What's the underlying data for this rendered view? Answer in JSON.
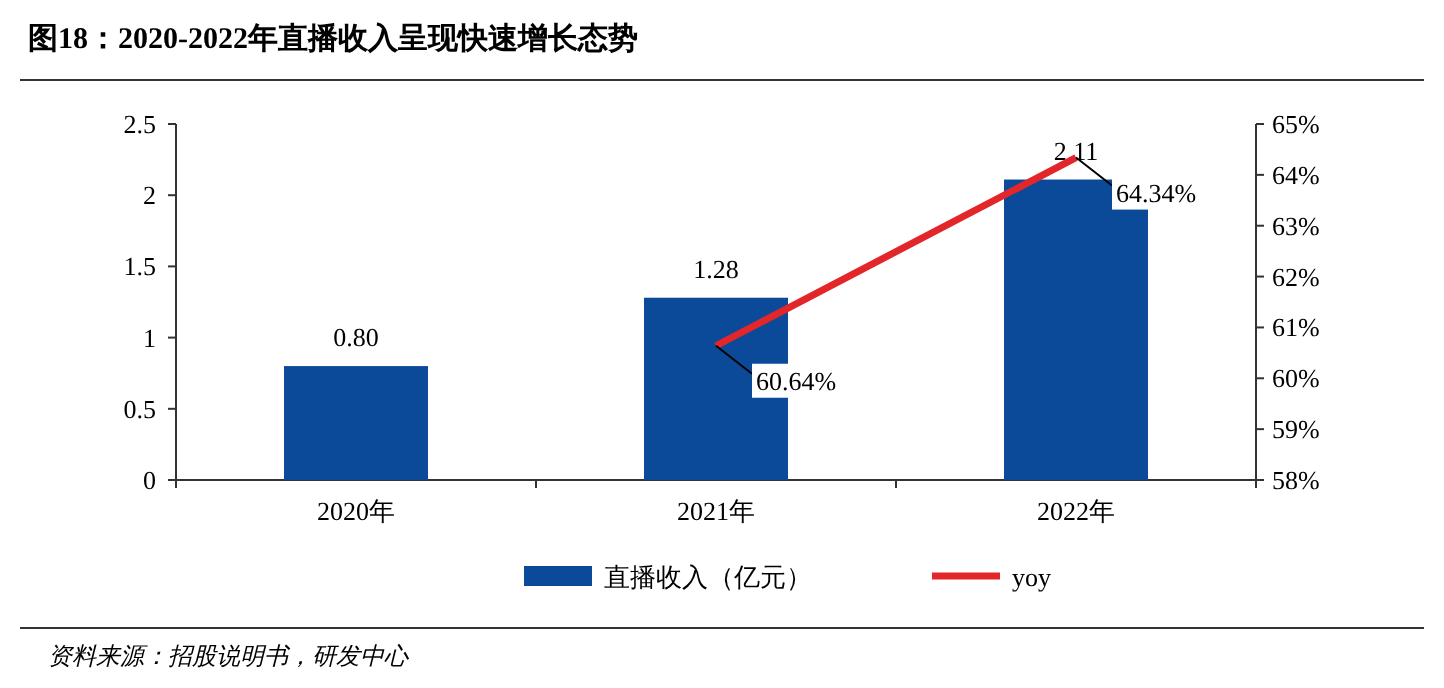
{
  "chart_data": {
    "type": "bar",
    "title": "图18：2020-2022年直播收入呈现快速增长态势",
    "categories": [
      "2020年",
      "2021年",
      "2022年"
    ],
    "series": [
      {
        "name": "直播收入（亿元）",
        "color": "#0b4a99",
        "values": [
          0.8,
          1.28,
          2.11
        ],
        "value_labels": [
          "0.80",
          "1.28",
          "2.11"
        ]
      },
      {
        "name": "yoy",
        "type": "line",
        "axis": "y2",
        "color": "#e3262a",
        "values": [
          null,
          60.64,
          64.34
        ],
        "value_labels": [
          null,
          "60.64%",
          "64.34%"
        ]
      }
    ],
    "ylim": [
      0,
      2.5
    ],
    "yticks": [
      0,
      0.5,
      1,
      1.5,
      2,
      2.5
    ],
    "y2lim": [
      58,
      65
    ],
    "y2ticks": [
      {
        "value": 58,
        "label": "58%"
      },
      {
        "value": 59,
        "label": "59%"
      },
      {
        "value": 60,
        "label": "60%"
      },
      {
        "value": 61,
        "label": "61%"
      },
      {
        "value": 62,
        "label": "62%"
      },
      {
        "value": 63,
        "label": "63%"
      },
      {
        "value": 64,
        "label": "64%"
      },
      {
        "value": 65,
        "label": "65%"
      }
    ],
    "legend": "bottom",
    "grid": false,
    "marker": "none",
    "annotations": [
      "资料来源：招股说明书，研发中心"
    ]
  }
}
